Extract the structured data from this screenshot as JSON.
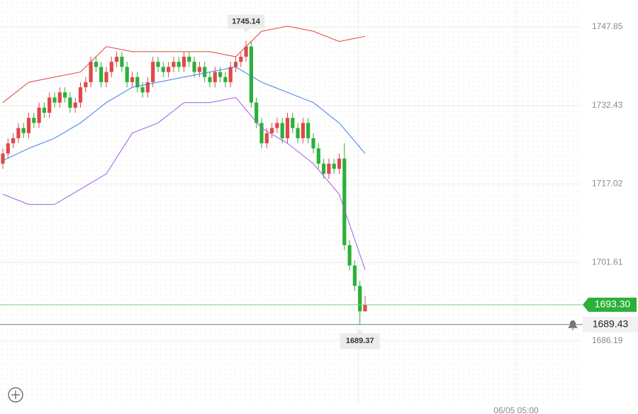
{
  "chart_data": {
    "type": "candlestick",
    "open": [
      1721,
      1723,
      1725,
      1726,
      1728,
      1727,
      1730,
      1729,
      1732,
      1731,
      1734,
      1733,
      1735,
      1734,
      1732,
      1733,
      1736,
      1737,
      1741,
      1740,
      1737,
      1739,
      1741,
      1742,
      1740,
      1737,
      1738,
      1736,
      1735,
      1737,
      1741,
      1740,
      1739,
      1740,
      1741,
      1740,
      1742,
      1741,
      1739,
      1740,
      1738,
      1737,
      1739,
      1738,
      1737,
      1740,
      1741,
      1742,
      1744,
      1733,
      1729,
      1725,
      1727,
      1728,
      1729,
      1726,
      1730,
      1728,
      1726,
      1729,
      1726,
      1724,
      1721,
      1719,
      1721,
      1720,
      1722,
      1705,
      1701,
      1697,
      1692
    ],
    "high": [
      1724,
      1726,
      1727,
      1729,
      1729,
      1731,
      1731,
      1733,
      1733,
      1735,
      1735,
      1736,
      1736,
      1735,
      1734,
      1737,
      1738,
      1742,
      1742,
      1741,
      1740,
      1742,
      1743,
      1743,
      1741,
      1739,
      1739,
      1737,
      1738,
      1742,
      1742,
      1741,
      1741,
      1742,
      1742,
      1743,
      1743,
      1742,
      1741,
      1741,
      1739,
      1740,
      1740,
      1739,
      1741,
      1742,
      1743,
      1745.14,
      1745,
      1734,
      1730,
      1728,
      1729,
      1730,
      1730,
      1731,
      1731,
      1729,
      1730,
      1730,
      1727,
      1725,
      1722,
      1722,
      1722,
      1723,
      1725,
      1706,
      1702,
      1698,
      1695
    ],
    "low": [
      1720,
      1722,
      1724,
      1725,
      1726,
      1726,
      1728,
      1728,
      1730,
      1730,
      1732,
      1732,
      1733,
      1731,
      1731,
      1732,
      1735,
      1736,
      1739,
      1736,
      1736,
      1738,
      1740,
      1739,
      1736,
      1736,
      1735,
      1734,
      1734,
      1736,
      1739,
      1738,
      1738,
      1739,
      1739,
      1739,
      1740,
      1738,
      1738,
      1737,
      1736,
      1736,
      1737,
      1736,
      1736,
      1739,
      1740,
      1741,
      1732,
      1728,
      1724,
      1724,
      1726,
      1727,
      1725,
      1725,
      1727,
      1725,
      1725,
      1725,
      1723,
      1720,
      1718,
      1718,
      1719,
      1719,
      1704,
      1700,
      1696,
      1689.37,
      1692
    ],
    "close": [
      1723,
      1725,
      1726,
      1728,
      1727,
      1730,
      1729,
      1732,
      1731,
      1734,
      1733,
      1735,
      1734,
      1732,
      1733,
      1736,
      1737,
      1741,
      1740,
      1737,
      1739,
      1741,
      1742,
      1740,
      1737,
      1738,
      1736,
      1735,
      1737,
      1741,
      1740,
      1739,
      1740,
      1741,
      1740,
      1742,
      1741,
      1739,
      1740,
      1738,
      1737,
      1739,
      1738,
      1737,
      1740,
      1741,
      1742,
      1744,
      1733,
      1729,
      1725,
      1727,
      1728,
      1729,
      1726,
      1730,
      1728,
      1726,
      1729,
      1726,
      1724,
      1721,
      1719,
      1721,
      1720,
      1722,
      1705,
      1701,
      1697,
      1692,
      1693.3
    ],
    "up_color": "#e0484a",
    "down_color": "#2bb03a",
    "bands": {
      "x": [
        0,
        5,
        10,
        15,
        20,
        25,
        30,
        35,
        40,
        45,
        50,
        55,
        60,
        65,
        70
      ],
      "series": [
        {
          "color": "#d9483b",
          "values": [
            1733,
            1737,
            1738,
            1739,
            1744,
            1743,
            1743,
            1743,
            1743,
            1742,
            1747,
            1748,
            1747,
            1745,
            1746
          ]
        },
        {
          "color": "#3f7fe0",
          "values": [
            1721.6,
            1724,
            1726,
            1729,
            1733,
            1736,
            1737,
            1738,
            1739,
            1740,
            1737,
            1735,
            1733,
            1729,
            1723
          ]
        },
        {
          "color": "#9b5de5",
          "values": [
            1715,
            1713,
            1713,
            1716,
            1719,
            1727,
            1729,
            1733,
            1733,
            1734,
            1728,
            1725,
            1721,
            1715,
            1700.2
          ]
        }
      ]
    },
    "last_price_label": "1693.30",
    "alert_price": 1689.43,
    "x_axis_labels": [
      "06/05 05:00"
    ],
    "ylim": [
      1673.8,
      1753.14
    ],
    "yticks": [
      1686.19,
      1701.61,
      1717.02,
      1732.43,
      1747.85
    ],
    "grid": true
  }
}
